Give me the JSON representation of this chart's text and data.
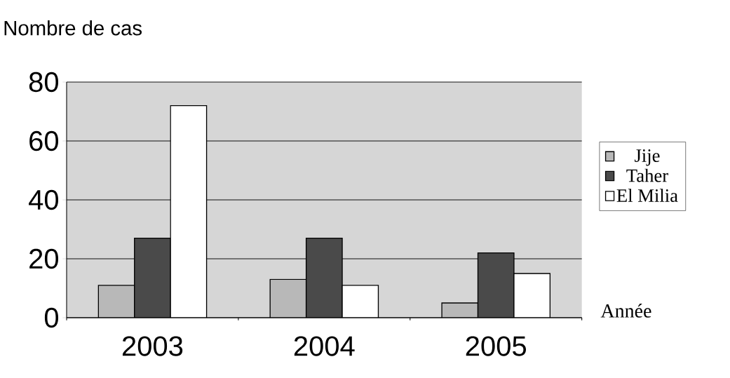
{
  "chart_data": {
    "type": "bar",
    "ylabel": "Nombre de cas",
    "xlabel": "Année",
    "categories": [
      "2003",
      "2004",
      "2005"
    ],
    "series": [
      {
        "name": "Jije",
        "color": "#b8b8b8",
        "values": [
          11,
          13,
          5
        ]
      },
      {
        "name": "Taher",
        "color": "#4a4a4a",
        "values": [
          27,
          27,
          22
        ]
      },
      {
        "name": "El Milia",
        "color": "#ffffff",
        "values": [
          72,
          11,
          15
        ]
      }
    ],
    "ylim": [
      0,
      80
    ],
    "yticks": [
      0,
      20,
      40,
      60,
      80
    ],
    "grid": "y",
    "legend": "right"
  }
}
